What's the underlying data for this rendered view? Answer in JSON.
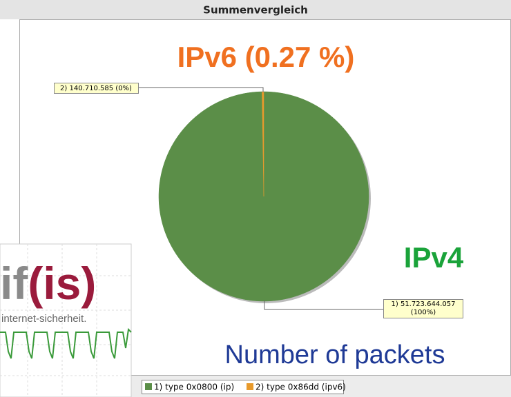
{
  "chart_data": {
    "type": "pie",
    "title": "Summenvergleich",
    "categories": [
      "1) type 0x0800 (ip)",
      "2) type 0x86dd (ipv6)"
    ],
    "values": [
      51723644057,
      140710585
    ],
    "value_labels": [
      "1) 51.723.644.057 (100%)",
      "2) 140.710.585 (0%)"
    ],
    "colors": [
      "#5b8e48",
      "#e89a2c"
    ],
    "annotations": [
      "IPv6 (0.27 %)",
      "IPv4",
      "Number of packets"
    ]
  },
  "logo": {
    "mark_left": "if",
    "mark_right": "(is)",
    "tagline": "internet-sicherheit."
  }
}
